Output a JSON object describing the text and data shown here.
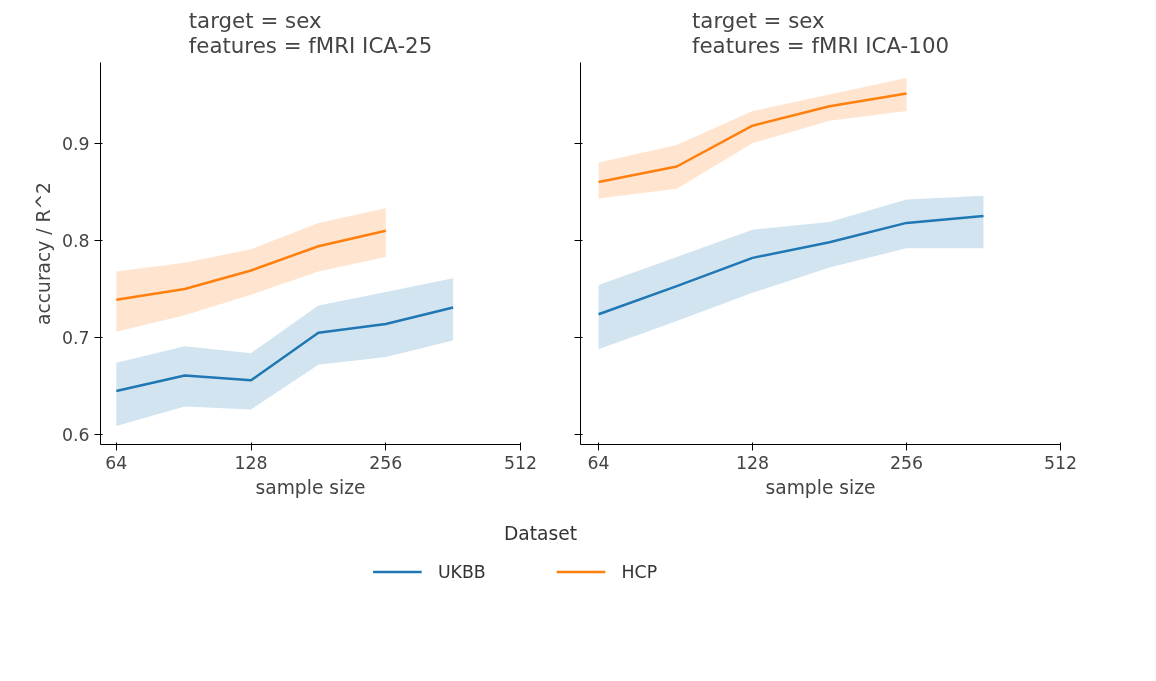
{
  "chart_data": [
    {
      "type": "line",
      "title": "target = sex\nfeatures = fMRI ICA-25",
      "xlabel": "sample size",
      "ylabel": "accuracy / R^2",
      "log": "x",
      "xlim": [
        59,
        512
      ],
      "xticks": [
        64,
        128,
        256,
        512
      ],
      "ylim": [
        0.59,
        0.983
      ],
      "yticks": [
        0.6,
        0.7,
        0.8,
        0.9
      ],
      "grid": false,
      "legend": "bottom",
      "legend_title": "Dataset",
      "series": [
        {
          "name": "UKBB",
          "color": "#1f77b4",
          "x": [
            64,
            91,
            128,
            181,
            256,
            362
          ],
          "values": [
            0.645,
            0.661,
            0.656,
            0.705,
            0.714,
            0.731
          ],
          "lower": [
            0.609,
            0.629,
            0.626,
            0.672,
            0.68,
            0.697
          ],
          "upper": [
            0.674,
            0.691,
            0.684,
            0.733,
            0.747,
            0.761
          ]
        },
        {
          "name": "HCP",
          "color": "#ff7f0e",
          "x": [
            64,
            91,
            128,
            181,
            256
          ],
          "values": [
            0.739,
            0.75,
            0.769,
            0.794,
            0.81
          ],
          "lower": [
            0.706,
            0.723,
            0.744,
            0.768,
            0.783
          ],
          "upper": [
            0.768,
            0.777,
            0.791,
            0.818,
            0.833
          ]
        }
      ]
    },
    {
      "type": "line",
      "title": "target = sex\nfeatures = fMRI ICA-100",
      "xlabel": "sample size",
      "log": "x",
      "xlim": [
        59,
        512
      ],
      "xticks": [
        64,
        128,
        256,
        512
      ],
      "ylim": [
        0.59,
        0.983
      ],
      "yticks": [
        0.6,
        0.7,
        0.8,
        0.9
      ],
      "grid": false,
      "tick_labels": "x",
      "series": [
        {
          "color": "#1f77b4",
          "x": [
            64,
            91,
            128,
            181,
            256,
            362
          ],
          "values": [
            0.724,
            0.753,
            0.782,
            0.798,
            0.818,
            0.825
          ],
          "lower": [
            0.688,
            0.717,
            0.746,
            0.772,
            0.792,
            0.792
          ],
          "upper": [
            0.754,
            0.783,
            0.811,
            0.819,
            0.842,
            0.846
          ]
        },
        {
          "color": "#ff7f0e",
          "x": [
            64,
            91,
            128,
            181,
            256
          ],
          "values": [
            0.86,
            0.876,
            0.918,
            0.938,
            0.951
          ],
          "lower": [
            0.843,
            0.853,
            0.9,
            0.923,
            0.933
          ],
          "upper": [
            0.88,
            0.898,
            0.933,
            0.95,
            0.967
          ]
        }
      ]
    }
  ]
}
